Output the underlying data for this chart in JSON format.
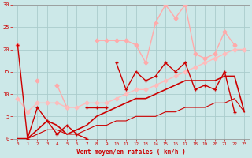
{
  "bg_color": "#cce8e8",
  "grid_color": "#aacccc",
  "xlabel": "Vent moyen/en rafales ( km/h )",
  "xlabel_color": "#cc0000",
  "tick_color": "#cc0000",
  "ylim": [
    0,
    30
  ],
  "xlim": [
    -0.5,
    23.5
  ],
  "yticks": [
    0,
    5,
    10,
    15,
    20,
    25,
    30
  ],
  "xticks": [
    0,
    1,
    2,
    3,
    4,
    5,
    6,
    7,
    8,
    9,
    10,
    11,
    12,
    13,
    14,
    15,
    16,
    17,
    18,
    19,
    20,
    21,
    22,
    23
  ],
  "series": [
    {
      "data": [
        21,
        0,
        7,
        4,
        1,
        3,
        1,
        0,
        null,
        null,
        null,
        null,
        null,
        null,
        null,
        null,
        null,
        null,
        null,
        null,
        null,
        null,
        null,
        null
      ],
      "color": "#cc0000",
      "marker": "+",
      "lw": 1.0,
      "ms": 3.5,
      "zorder": 5
    },
    {
      "data": [
        null,
        null,
        null,
        null,
        null,
        null,
        null,
        null,
        null,
        null,
        17,
        11,
        15,
        13,
        14,
        17,
        15,
        17,
        11,
        12,
        11,
        15,
        6,
        null
      ],
      "color": "#cc0000",
      "marker": "+",
      "lw": 1.0,
      "ms": 3.5,
      "zorder": 5
    },
    {
      "data": [
        null,
        null,
        null,
        null,
        null,
        null,
        null,
        7,
        7,
        7,
        null,
        null,
        null,
        null,
        null,
        null,
        null,
        null,
        null,
        null,
        null,
        null,
        null,
        null
      ],
      "color": "#cc0000",
      "marker": "+",
      "lw": 1.0,
      "ms": 3.5,
      "zorder": 5
    },
    {
      "data": [
        21,
        null,
        13,
        null,
        12,
        7,
        null,
        null,
        22,
        22,
        22,
        22,
        21,
        17,
        26,
        30,
        27,
        30,
        19,
        18,
        19,
        24,
        21,
        null
      ],
      "color": "#ffaaaa",
      "marker": "D",
      "lw": 1.0,
      "ms": 2.5,
      "zorder": 4
    },
    {
      "data": [
        9,
        6,
        8,
        8,
        8,
        7,
        7,
        8,
        8,
        8,
        9,
        10,
        11,
        11,
        12,
        13,
        14,
        15,
        16,
        17,
        18,
        19,
        20,
        20
      ],
      "color": "#ffbbbb",
      "marker": "D",
      "lw": 1.0,
      "ms": 2.5,
      "zorder": 4
    },
    {
      "data": [
        0,
        0,
        2,
        4,
        3,
        1,
        2,
        3,
        5,
        6,
        7,
        8,
        9,
        9,
        10,
        11,
        12,
        13,
        13,
        13,
        13,
        14,
        14,
        6
      ],
      "color": "#cc0000",
      "marker": null,
      "lw": 1.2,
      "ms": 0,
      "zorder": 3
    },
    {
      "data": [
        0,
        0,
        1,
        2,
        2,
        1,
        1,
        2,
        3,
        3,
        4,
        4,
        5,
        5,
        5,
        6,
        6,
        7,
        7,
        7,
        8,
        8,
        9,
        6
      ],
      "color": "#cc0000",
      "marker": null,
      "lw": 0.8,
      "ms": 0,
      "zorder": 3
    }
  ]
}
